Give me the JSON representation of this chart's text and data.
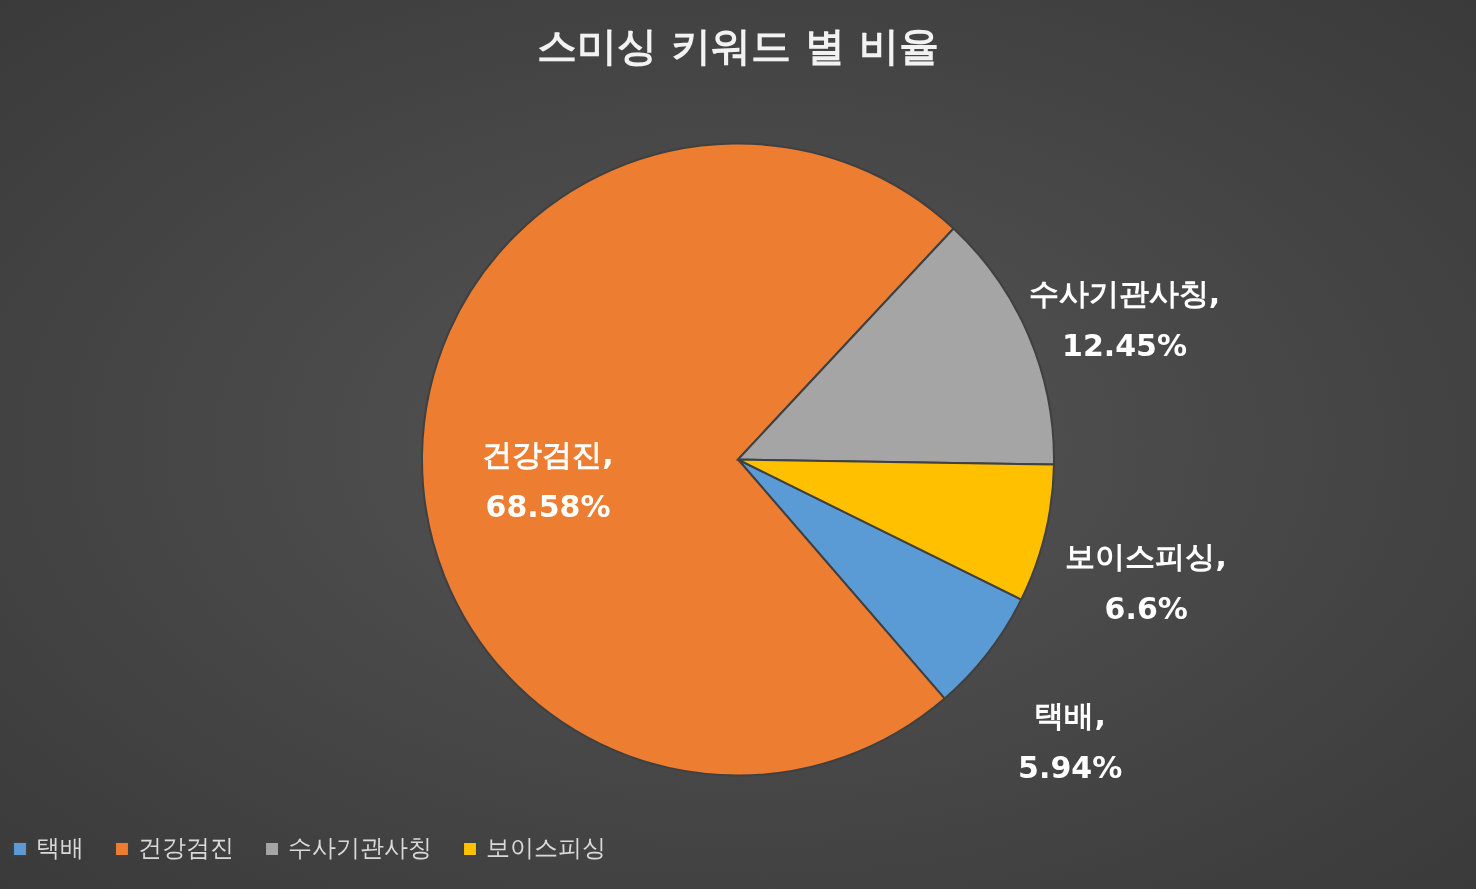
{
  "chart_data": {
    "type": "pie",
    "title": "스미싱 키워드 별 비율",
    "categories": [
      "택배",
      "건강검진",
      "수사기관사칭",
      "보이스피싱"
    ],
    "values": [
      5.94,
      68.58,
      12.45,
      6.6
    ],
    "value_labels": [
      "택배, 5.94%",
      "건강검진, 68.58%",
      "수사기관사칭, 12.45%",
      "보이스피싱, 6.6%"
    ],
    "colors": [
      "#5b9bd5",
      "#ed7d31",
      "#a5a5a5",
      "#ffc000"
    ],
    "legend": "bottom"
  }
}
